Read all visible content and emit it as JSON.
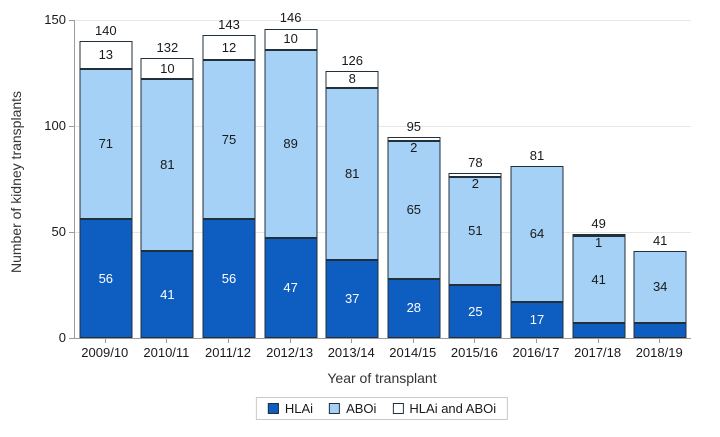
{
  "chart_data": {
    "type": "bar",
    "stacked": true,
    "title": "",
    "xlabel": "Year of transplant",
    "ylabel": "Number of kidney transplants",
    "categories": [
      "2009/10",
      "2010/11",
      "2011/12",
      "2012/13",
      "2013/14",
      "2014/15",
      "2015/16",
      "2016/17",
      "2017/18",
      "2018/19"
    ],
    "series": [
      {
        "name": "HLAi",
        "color": "#0d5ec0",
        "label_color": "#ffffff",
        "values": [
          56,
          41,
          56,
          47,
          37,
          28,
          25,
          17,
          7,
          7
        ]
      },
      {
        "name": "ABOi",
        "color": "#a4d1f5",
        "label_color": "#1a1a1a",
        "values": [
          71,
          81,
          75,
          89,
          81,
          65,
          51,
          64,
          41,
          34
        ]
      },
      {
        "name": "HLAi and ABOi",
        "color": "#ffffff",
        "label_color": "#1a1a1a",
        "values": [
          13,
          10,
          12,
          10,
          8,
          2,
          2,
          0,
          1,
          0
        ]
      }
    ],
    "totals": [
      140,
      132,
      143,
      146,
      126,
      95,
      78,
      81,
      49,
      41
    ],
    "ylim": [
      0,
      150
    ],
    "yticks": [
      0,
      50,
      100,
      150
    ],
    "grid": true,
    "legend_position": "bottom",
    "colors": {
      "axis": "#9b9b9b",
      "gridline": "#e7e7e7",
      "bar_border": "#22303c",
      "text": "#1a1a1a"
    }
  }
}
